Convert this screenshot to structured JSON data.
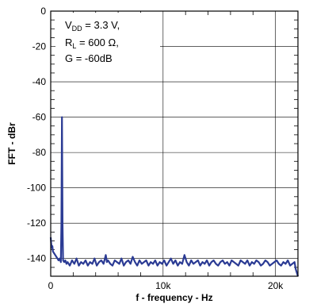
{
  "chart_data": {
    "type": "line",
    "xlabel": "f - frequency - Hz",
    "ylabel": "FFT - dBr",
    "xlim": [
      0,
      22000
    ],
    "ylim": [
      -150,
      0
    ],
    "x_ticks": [
      0,
      10000,
      20000
    ],
    "x_tick_labels": [
      "0",
      "10k",
      "20k"
    ],
    "y_ticks": [
      0,
      -20,
      -40,
      -60,
      -80,
      -100,
      -120,
      -140
    ],
    "y_tick_labels": [
      "0",
      "-20",
      "-40",
      "-60",
      "-80",
      "-100",
      "-120",
      "-140"
    ],
    "grid": true,
    "annotation": {
      "line1_main": "V",
      "line1_sub": "DD",
      "line1_rest": " = 3.3 V,",
      "line2_main": "R",
      "line2_sub": "L",
      "line2_rest": " = 600 Ω,",
      "line3": "G = -60dB"
    },
    "series": [
      {
        "color": "#2b3b94",
        "x": [
          0,
          50,
          100,
          150,
          200,
          300,
          400,
          500,
          600,
          700,
          800,
          900,
          950,
          1000,
          1050,
          1100,
          1200,
          1300,
          1400,
          1500,
          1700,
          1900,
          2100,
          2300,
          2500,
          2700,
          2900,
          3100,
          3300,
          3500,
          3700,
          3900,
          4100,
          4300,
          4500,
          4700,
          4900,
          5000,
          5100,
          5300,
          5500,
          5700,
          5900,
          6100,
          6300,
          6500,
          6700,
          6900,
          7100,
          7300,
          7500,
          7700,
          7900,
          8100,
          8300,
          8500,
          8700,
          8900,
          9100,
          9300,
          9500,
          9700,
          9900,
          10100,
          10300,
          10500,
          10700,
          10900,
          11100,
          11300,
          11500,
          11700,
          11900,
          12100,
          12300,
          12500,
          12700,
          12900,
          13100,
          13300,
          13500,
          13700,
          13900,
          14100,
          14300,
          14500,
          14700,
          14900,
          15100,
          15300,
          15500,
          15700,
          15900,
          16100,
          16300,
          16500,
          16700,
          16900,
          17100,
          17300,
          17500,
          17700,
          17900,
          18100,
          18300,
          18500,
          18700,
          18900,
          19100,
          19300,
          19500,
          19700,
          19900,
          20100,
          20300,
          20500,
          20700,
          20900,
          21100,
          21300,
          21500,
          21700,
          21800,
          21900,
          22000
        ],
        "y": [
          -128,
          -132,
          -134,
          -133,
          -136,
          -137,
          -138,
          -139,
          -140,
          -141,
          -140,
          -142,
          -120,
          -60,
          -120,
          -141,
          -142,
          -141,
          -143,
          -142,
          -144,
          -141,
          -143,
          -140,
          -144,
          -142,
          -143,
          -141,
          -144,
          -142,
          -143,
          -140,
          -144,
          -142,
          -141,
          -143,
          -138,
          -142,
          -141,
          -143,
          -144,
          -141,
          -142,
          -143,
          -140,
          -144,
          -142,
          -141,
          -143,
          -139,
          -142,
          -144,
          -141,
          -143,
          -142,
          -141,
          -144,
          -142,
          -143,
          -141,
          -144,
          -142,
          -143,
          -141,
          -144,
          -142,
          -140,
          -143,
          -141,
          -144,
          -142,
          -143,
          -138,
          -142,
          -144,
          -141,
          -143,
          -142,
          -141,
          -144,
          -142,
          -143,
          -141,
          -144,
          -142,
          -141,
          -143,
          -144,
          -142,
          -141,
          -143,
          -142,
          -144,
          -141,
          -142,
          -143,
          -144,
          -141,
          -142,
          -143,
          -141,
          -144,
          -142,
          -143,
          -141,
          -142,
          -144,
          -143,
          -141,
          -142,
          -144,
          -143,
          -142,
          -141,
          -143,
          -144,
          -142,
          -143,
          -141,
          -144,
          -143,
          -142,
          -146,
          -148,
          -150
        ]
      }
    ]
  }
}
